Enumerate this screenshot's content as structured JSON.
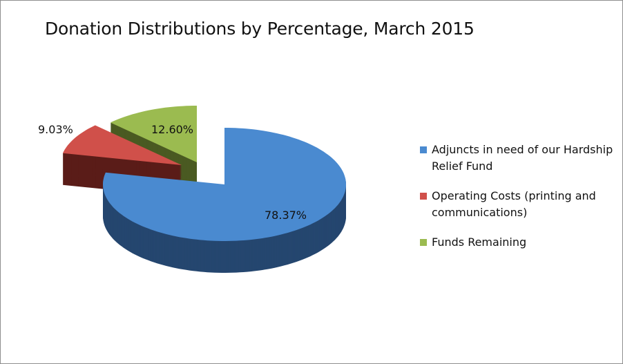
{
  "chart_data": {
    "type": "pie",
    "style": "3d exploded",
    "title": "Donation Distributions by Percentage, March 2015",
    "legend_position": "right",
    "slices": [
      {
        "name": "Adjuncts in need of our Hardship Relief Fund",
        "value": 78.37,
        "label": "78.37%",
        "color": "#4a8ad0",
        "side_color": "#25466f"
      },
      {
        "name": "Operating Costs (printing and communications)",
        "value": 9.03,
        "label": "9.03%",
        "color": "#d0504a",
        "side_color": "#5a1c18"
      },
      {
        "name": "Funds Remaining",
        "value": 12.6,
        "label": "12.60%",
        "color": "#9bbb50",
        "side_color": "#4a5a22"
      }
    ]
  }
}
